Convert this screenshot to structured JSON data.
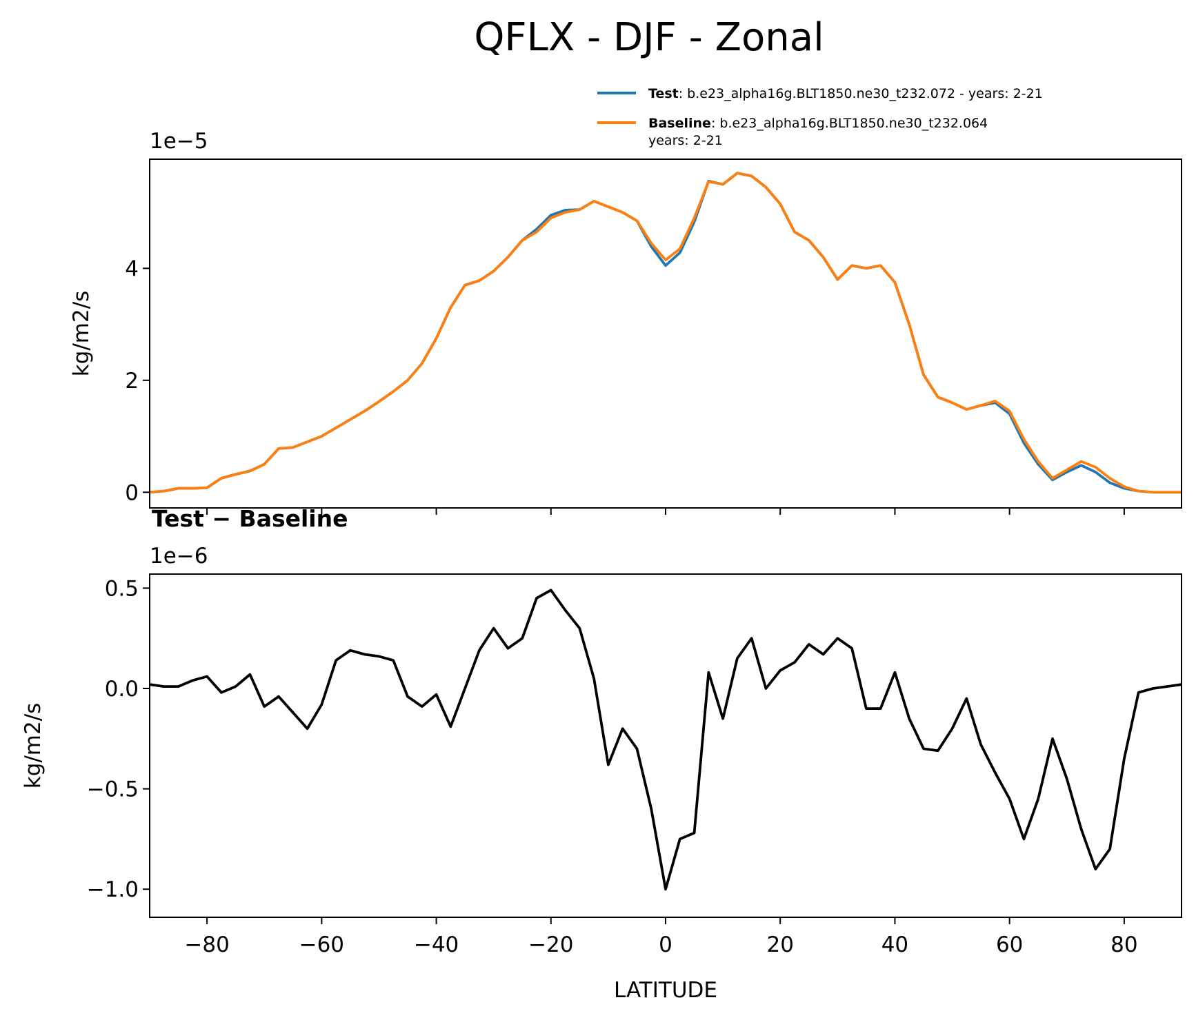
{
  "title": "QFLX - DJF - Zonal",
  "chart_data": [
    {
      "type": "line",
      "ylabel": "kg/m2/s",
      "offset_text": "1e−5",
      "x": [
        -90,
        -87.5,
        -85,
        -82.5,
        -80,
        -77.5,
        -75,
        -72.5,
        -70,
        -67.5,
        -65,
        -62.5,
        -60,
        -57.5,
        -55,
        -52.5,
        -50,
        -47.5,
        -45,
        -42.5,
        -40,
        -37.5,
        -35,
        -32.5,
        -30,
        -27.5,
        -25,
        -22.5,
        -20,
        -17.5,
        -15,
        -12.5,
        -10,
        -7.5,
        -5,
        -2.5,
        0,
        2.5,
        5,
        7.5,
        10,
        12.5,
        15,
        17.5,
        20,
        22.5,
        25,
        27.5,
        30,
        32.5,
        35,
        37.5,
        40,
        42.5,
        45,
        47.5,
        50,
        52.5,
        55,
        57.5,
        60,
        62.5,
        65,
        67.5,
        70,
        72.5,
        75,
        77.5,
        80,
        82.5,
        85,
        87.5,
        90
      ],
      "series": [
        {
          "name": "Test",
          "details": [
            ": b.e23_alpha16g.BLT1850.ne30_t232.072 - years: 2-21"
          ],
          "color": "#1f77b4",
          "values": [
            0,
            0.02,
            0.07,
            0.07,
            0.08,
            0.25,
            0.32,
            0.38,
            0.5,
            0.78,
            0.8,
            0.9,
            1.0,
            1.15,
            1.3,
            1.45,
            1.62,
            1.8,
            2.0,
            2.3,
            2.75,
            3.3,
            3.7,
            3.78,
            3.95,
            4.2,
            4.5,
            4.7,
            4.95,
            5.04,
            5.05,
            5.2,
            5.1,
            5.0,
            4.85,
            4.39,
            4.05,
            4.28,
            4.83,
            5.56,
            5.5,
            5.7,
            5.65,
            5.45,
            5.15,
            4.65,
            4.5,
            4.2,
            3.8,
            4.05,
            4.0,
            4.05,
            3.75,
            3.0,
            2.1,
            1.7,
            1.6,
            1.48,
            1.55,
            1.6,
            1.4,
            0.88,
            0.5,
            0.22,
            0.36,
            0.48,
            0.36,
            0.17,
            0.07,
            0.02,
            0,
            0,
            0
          ]
        },
        {
          "name": "Baseline",
          "details": [
            ": b.e23_alpha16g.BLT1850.ne30_t232.064",
            "years: 2-21"
          ],
          "color": "#ff7f0e",
          "values": [
            0,
            0.02,
            0.07,
            0.07,
            0.08,
            0.25,
            0.32,
            0.38,
            0.5,
            0.78,
            0.8,
            0.9,
            1.0,
            1.15,
            1.3,
            1.45,
            1.62,
            1.8,
            2.0,
            2.3,
            2.75,
            3.3,
            3.7,
            3.78,
            3.95,
            4.2,
            4.5,
            4.65,
            4.9,
            5.0,
            5.05,
            5.2,
            5.1,
            5.0,
            4.85,
            4.45,
            4.15,
            4.35,
            4.9,
            5.55,
            5.5,
            5.7,
            5.65,
            5.45,
            5.15,
            4.65,
            4.5,
            4.2,
            3.8,
            4.05,
            4.0,
            4.05,
            3.75,
            3.0,
            2.1,
            1.7,
            1.6,
            1.48,
            1.55,
            1.63,
            1.45,
            0.95,
            0.55,
            0.25,
            0.4,
            0.55,
            0.45,
            0.25,
            0.1,
            0.02,
            0,
            0,
            0
          ]
        }
      ],
      "xlim": [
        -90,
        90
      ],
      "xticks": [
        -80,
        -60,
        -40,
        -20,
        0,
        20,
        40,
        60,
        80
      ],
      "ylim": [
        -0.28,
        5.95
      ],
      "yticks": [
        0,
        2,
        4
      ]
    },
    {
      "type": "line",
      "title": "Test − Baseline",
      "ylabel": "kg/m2/s",
      "offset_text": "1e−6",
      "xlabel": "LATITUDE",
      "x": [
        -90,
        -87.5,
        -85,
        -82.5,
        -80,
        -77.5,
        -75,
        -72.5,
        -70,
        -67.5,
        -65,
        -62.5,
        -60,
        -57.5,
        -55,
        -52.5,
        -50,
        -47.5,
        -45,
        -42.5,
        -40,
        -37.5,
        -35,
        -32.5,
        -30,
        -27.5,
        -25,
        -22.5,
        -20,
        -17.5,
        -15,
        -12.5,
        -10,
        -7.5,
        -5,
        -2.5,
        0,
        2.5,
        5,
        7.5,
        10,
        12.5,
        15,
        17.5,
        20,
        22.5,
        25,
        27.5,
        30,
        32.5,
        35,
        37.5,
        40,
        42.5,
        45,
        47.5,
        50,
        52.5,
        55,
        57.5,
        60,
        62.5,
        65,
        67.5,
        70,
        72.5,
        75,
        77.5,
        80,
        82.5,
        85,
        87.5,
        90
      ],
      "series": [
        {
          "color": "#000000",
          "values": [
            0.02,
            0.01,
            0.01,
            0.04,
            0.06,
            -0.02,
            0.01,
            0.07,
            -0.09,
            -0.04,
            -0.12,
            -0.2,
            -0.08,
            0.14,
            0.19,
            0.17,
            0.16,
            0.14,
            -0.04,
            -0.09,
            -0.03,
            -0.19,
            0.0,
            0.19,
            0.3,
            0.2,
            0.25,
            0.45,
            0.49,
            0.39,
            0.3,
            0.05,
            -0.38,
            -0.2,
            -0.3,
            -0.6,
            -1.0,
            -0.75,
            -0.72,
            0.08,
            -0.15,
            0.15,
            0.25,
            0.0,
            0.09,
            0.13,
            0.22,
            0.17,
            0.25,
            0.2,
            -0.1,
            -0.1,
            0.08,
            -0.15,
            -0.3,
            -0.31,
            -0.2,
            -0.05,
            -0.28,
            -0.42,
            -0.55,
            -0.75,
            -0.55,
            -0.25,
            -0.45,
            -0.7,
            -0.9,
            -0.8,
            -0.35,
            -0.02,
            0.0,
            0.01,
            0.02
          ]
        }
      ],
      "xlim": [
        -90,
        90
      ],
      "xticks": [
        {
          "value": -80,
          "label": "−80"
        },
        {
          "value": -60,
          "label": "−60"
        },
        {
          "value": -40,
          "label": "−40"
        },
        {
          "value": -20,
          "label": "−20"
        },
        0,
        20,
        40,
        60,
        80
      ],
      "ylim": [
        -1.14,
        0.57
      ],
      "yticks": [
        {
          "value": -1,
          "label": "−1.0"
        },
        {
          "value": -0.5,
          "label": "−0.5"
        },
        {
          "value": 0,
          "label": "0.0"
        },
        0.5
      ]
    }
  ]
}
